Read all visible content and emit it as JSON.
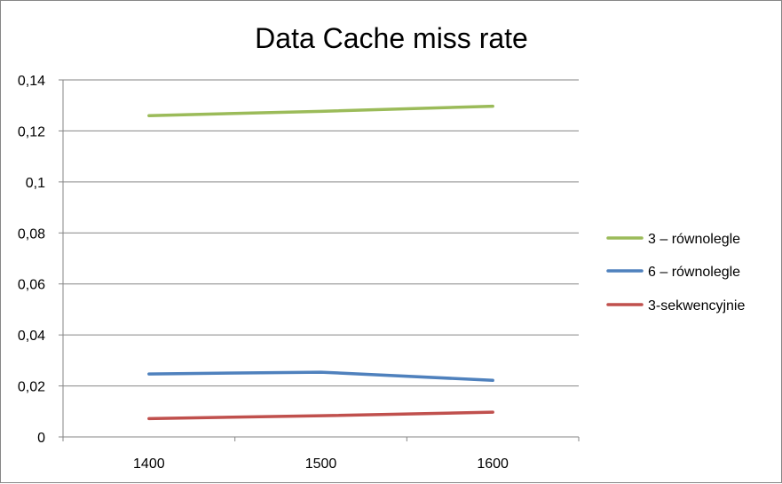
{
  "chart_data": {
    "type": "line",
    "title": "Data Cache miss rate",
    "xlabel": "",
    "ylabel": "",
    "categories": [
      "1400",
      "1500",
      "1600"
    ],
    "ylim": [
      0,
      0.14
    ],
    "y_ticks": [
      0,
      0.02,
      0.04,
      0.06,
      0.08,
      0.1,
      0.12,
      0.14
    ],
    "y_tick_labels": [
      "0",
      "0,02",
      "0,04",
      "0,06",
      "0,08",
      "0,1",
      "0,12",
      "0,14"
    ],
    "grid": true,
    "legend_position": "right",
    "series": [
      {
        "name": "3 – równolegle",
        "color": "#9bbb59",
        "values": [
          0.126,
          0.1277,
          0.1297
        ]
      },
      {
        "name": "6 – równolegle",
        "color": "#4f81bd",
        "values": [
          0.0247,
          0.0254,
          0.0222
        ]
      },
      {
        "name": "3-sekwencyjnie",
        "color": "#c0504d",
        "values": [
          0.0072,
          0.0083,
          0.0097
        ]
      }
    ]
  }
}
